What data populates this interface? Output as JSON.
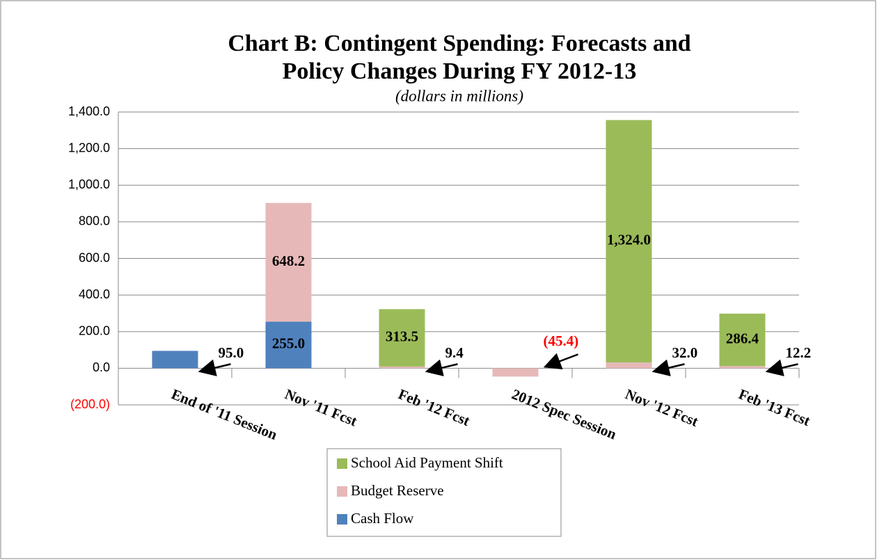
{
  "chart_data": {
    "type": "bar",
    "stacked": true,
    "title": [
      "Chart B:  Contingent Spending:  Forecasts and",
      "Policy Changes During FY 2012-13"
    ],
    "subtitle": "(dollars in millions)",
    "categories": [
      "End of '11 Session",
      "Nov '11 Fcst",
      "Feb '12 Fcst",
      "2012 Spec Session",
      "Nov '12 Fcst",
      "Feb '13 Fcst"
    ],
    "series": [
      {
        "name": "Cash Flow",
        "color": "#4f81bd",
        "values": [
          95.0,
          255.0,
          null,
          null,
          null,
          null
        ],
        "value_labels": [
          "95.0",
          "255.0",
          null,
          null,
          null,
          null
        ]
      },
      {
        "name": "Budget Reserve",
        "color": "#e6b9b8",
        "values": [
          null,
          648.2,
          9.4,
          -45.4,
          32.0,
          12.2
        ],
        "value_labels": [
          null,
          "648.2",
          "9.4",
          "(45.4)",
          "32.0",
          "12.2"
        ]
      },
      {
        "name": "School Aid Payment Shift",
        "color": "#9bbb59",
        "values": [
          null,
          null,
          313.5,
          null,
          1324.0,
          286.4
        ],
        "value_labels": [
          null,
          null,
          "313.5",
          null,
          "1,324.0",
          "286.4"
        ]
      }
    ],
    "ylim": [
      -200,
      1400
    ],
    "yticks": [
      {
        "value": -200,
        "label": "(200.0)"
      },
      {
        "value": 0,
        "label": "0.0"
      },
      {
        "value": 200,
        "label": "200.0"
      },
      {
        "value": 400,
        "label": "400.0"
      },
      {
        "value": 600,
        "label": "600.0"
      },
      {
        "value": 800,
        "label": "800.0"
      },
      {
        "value": 1000,
        "label": "1,000.0"
      },
      {
        "value": 1200,
        "label": "1,200.0"
      },
      {
        "value": 1400,
        "label": "1,400.0"
      }
    ],
    "grid": true,
    "negative_color": "#ff0000"
  }
}
